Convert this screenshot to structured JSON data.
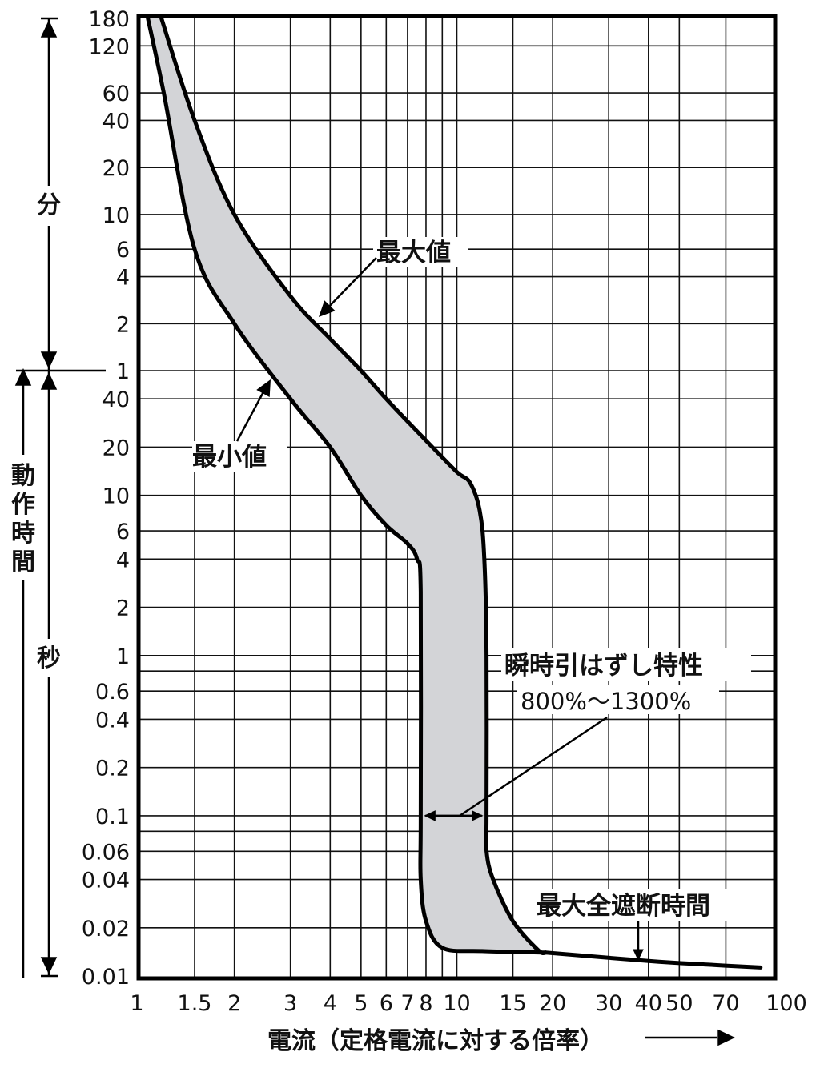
{
  "chart_data": {
    "type": "area",
    "x_scale": "log",
    "y_scale": "log-segmented",
    "xlim": [
      1,
      100
    ],
    "grid": true,
    "x_ticks": [
      "1",
      "1.5",
      "2",
      "3",
      "4",
      "5",
      "6",
      "7",
      "8",
      "10",
      "15",
      "20",
      "30",
      "40",
      "50",
      "70",
      "100"
    ],
    "y_ticks_minutes": [
      "180",
      "120",
      "60",
      "40",
      "20",
      "10",
      "6",
      "4",
      "2",
      "1"
    ],
    "y_ticks_seconds": [
      "40",
      "20",
      "10",
      "6",
      "4",
      "2",
      "1",
      "0.6",
      "0.4",
      "0.2",
      "0.1",
      "0.06",
      "0.04",
      "0.02",
      "0.01"
    ],
    "xlabel": "電流（定格電流に対する倍率）",
    "ylabel": "動作時間",
    "y_unit_minutes": "分",
    "y_unit_seconds": "秒",
    "series": [
      {
        "name": "最大値",
        "points": [
          [
            1.18,
            10800
          ],
          [
            1.5,
            2400
          ],
          [
            2,
            600
          ],
          [
            3,
            180
          ],
          [
            4,
            96
          ],
          [
            5,
            60
          ],
          [
            6,
            40
          ],
          [
            8,
            22
          ],
          [
            10,
            14
          ],
          [
            11,
            12
          ],
          [
            11.8,
            8
          ],
          [
            12.2,
            4
          ],
          [
            12.4,
            1
          ],
          [
            12.4,
            0.1
          ],
          [
            12.4,
            0.06
          ],
          [
            13,
            0.04
          ],
          [
            15,
            0.022
          ],
          [
            18,
            0.0145
          ],
          [
            19,
            0.014
          ]
        ]
      },
      {
        "name": "最小値",
        "points": [
          [
            1.07,
            10800
          ],
          [
            1.2,
            3600
          ],
          [
            1.5,
            360
          ],
          [
            2,
            120
          ],
          [
            3,
            40
          ],
          [
            4,
            20
          ],
          [
            5,
            10
          ],
          [
            6,
            6.5
          ],
          [
            7,
            5
          ],
          [
            7.5,
            4
          ],
          [
            7.7,
            2.5
          ],
          [
            7.7,
            0.1
          ],
          [
            7.7,
            0.04
          ],
          [
            8,
            0.022
          ],
          [
            9,
            0.015
          ],
          [
            12,
            0.0143
          ],
          [
            19,
            0.014
          ]
        ]
      },
      {
        "name": "最大全遮断時間",
        "points": [
          [
            19,
            0.014
          ],
          [
            40,
            0.0124
          ],
          [
            60,
            0.0118
          ],
          [
            90,
            0.0113
          ]
        ]
      }
    ],
    "annotations": {
      "max": "最大値",
      "min": "最小値",
      "instantaneous": "瞬時引はずし特性",
      "instantaneous_range": "800%〜1300%",
      "total_clearing": "最大全遮断時間"
    },
    "colors": {
      "band": "#d3d4d7",
      "line": "#000000"
    }
  }
}
